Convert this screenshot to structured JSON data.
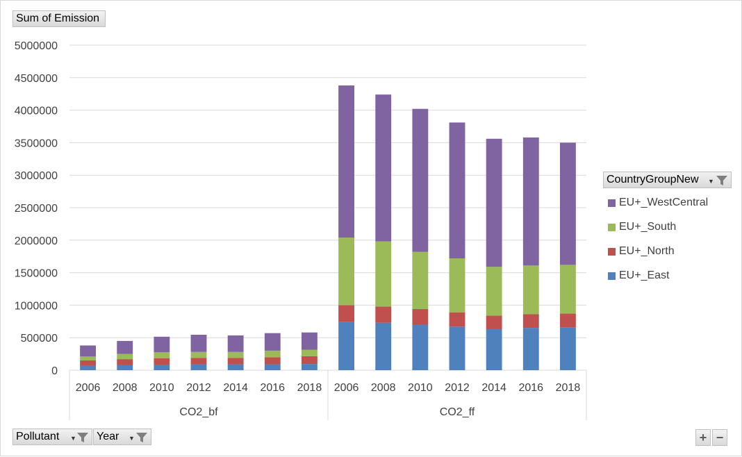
{
  "value_field": {
    "label": "Sum of Emission"
  },
  "filters": [
    {
      "label": "Pollutant"
    },
    {
      "label": "Year"
    }
  ],
  "legend": {
    "title": "CountryGroupNew",
    "items": [
      {
        "label": "EU+_WestCentral",
        "color": "#8064a2"
      },
      {
        "label": "EU+_South",
        "color": "#9bbb59"
      },
      {
        "label": "EU+_North",
        "color": "#c0504d"
      },
      {
        "label": "EU+_East",
        "color": "#4f81bd"
      }
    ]
  },
  "zoom": {
    "plus": "+",
    "minus": "−"
  },
  "chart_data": {
    "type": "bar",
    "stacked": true,
    "groups": [
      {
        "label": "CO2_bf",
        "categories": [
          "2006",
          "2008",
          "2010",
          "2012",
          "2014",
          "2016",
          "2018"
        ]
      },
      {
        "label": "CO2_ff",
        "categories": [
          "2006",
          "2008",
          "2010",
          "2012",
          "2014",
          "2016",
          "2018"
        ]
      }
    ],
    "series": [
      {
        "name": "EU+_East",
        "color": "#4f81bd",
        "values": [
          70000,
          80000,
          85000,
          90000,
          90000,
          90000,
          95000,
          740000,
          730000,
          700000,
          670000,
          630000,
          650000,
          660000
        ]
      },
      {
        "name": "EU+_North",
        "color": "#c0504d",
        "values": [
          80000,
          90000,
          100000,
          100000,
          100000,
          110000,
          120000,
          260000,
          250000,
          240000,
          220000,
          210000,
          210000,
          210000
        ]
      },
      {
        "name": "EU+_South",
        "color": "#9bbb59",
        "values": [
          60000,
          80000,
          90000,
          90000,
          90000,
          100000,
          100000,
          1040000,
          1000000,
          880000,
          830000,
          750000,
          750000,
          750000
        ]
      },
      {
        "name": "EU+_WestCentral",
        "color": "#8064a2",
        "values": [
          170000,
          200000,
          240000,
          265000,
          255000,
          270000,
          265000,
          2340000,
          2260000,
          2200000,
          2090000,
          1970000,
          1970000,
          1880000
        ]
      }
    ],
    "ylim": [
      0,
      5000000
    ],
    "yticks": [
      "0",
      "500000",
      "1000000",
      "1500000",
      "2000000",
      "2500000",
      "3000000",
      "3500000",
      "4000000",
      "4500000",
      "5000000"
    ],
    "grid": true,
    "legend_position": "right"
  }
}
